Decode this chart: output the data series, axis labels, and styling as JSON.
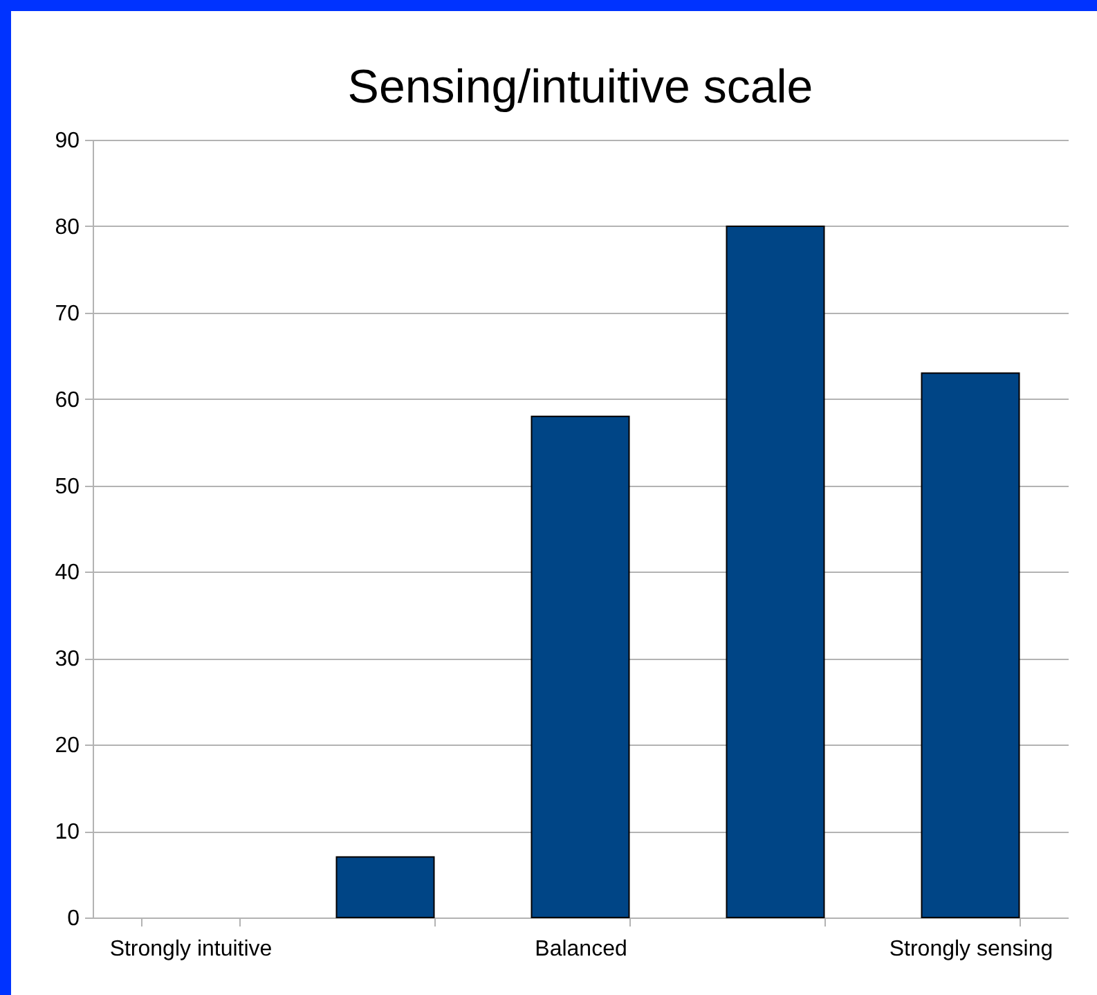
{
  "chart_data": {
    "type": "bar",
    "title": "Sensing/intuitive scale",
    "categories": [
      "Strongly intuitive",
      null,
      "Balanced",
      null,
      "Strongly sensing"
    ],
    "values": [
      0,
      7,
      58,
      80,
      63
    ],
    "color": "#004586",
    "ylim": [
      0,
      90
    ],
    "yticks": [
      0,
      10,
      20,
      30,
      40,
      50,
      60,
      70,
      80,
      90
    ],
    "grid": "y"
  }
}
